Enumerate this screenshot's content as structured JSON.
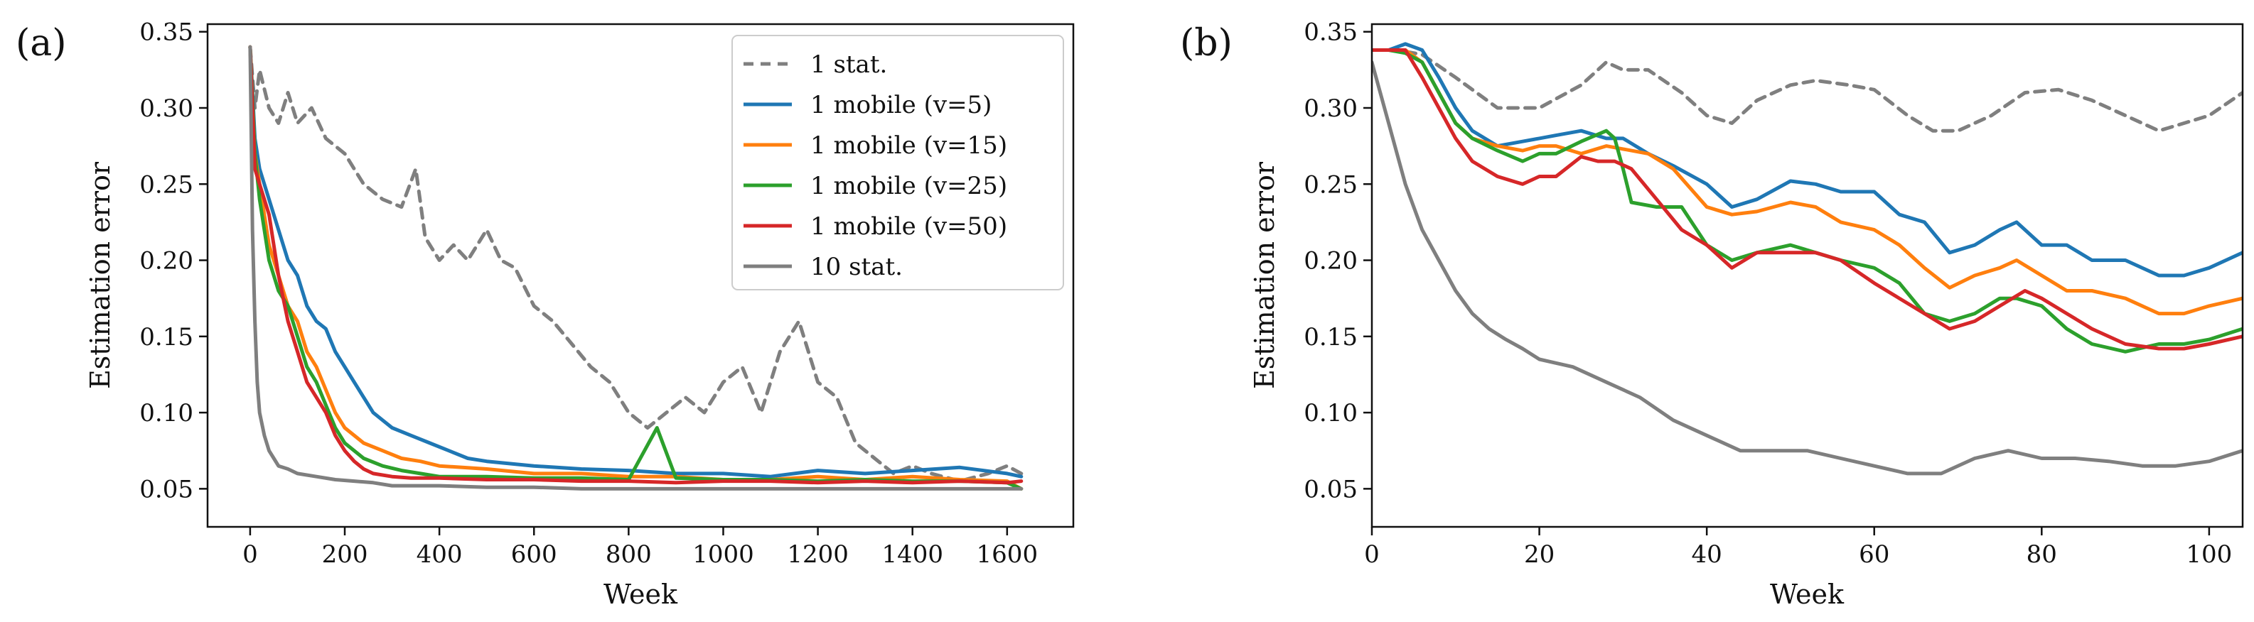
{
  "panels": [
    {
      "label": "(a)",
      "xlabel": "Week",
      "ylabel": "Estimation error",
      "xticks": [
        "0",
        "200",
        "400",
        "600",
        "800",
        "1000",
        "1200",
        "1400",
        "1600"
      ],
      "yticks": [
        "0.05",
        "0.10",
        "0.15",
        "0.20",
        "0.25",
        "0.30",
        "0.35"
      ]
    },
    {
      "label": "(b)",
      "xlabel": "Week",
      "ylabel": "Estimation error",
      "xticks": [
        "0",
        "20",
        "40",
        "60",
        "80",
        "100"
      ],
      "yticks": [
        "0.05",
        "0.10",
        "0.15",
        "0.20",
        "0.25",
        "0.30",
        "0.35"
      ]
    }
  ],
  "legend": [
    {
      "name": "1 stat.",
      "color": "#7f7f7f",
      "dash": true
    },
    {
      "name": "1 mobile (v=5)",
      "color": "#1f77b4",
      "dash": false
    },
    {
      "name": "1 mobile (v=15)",
      "color": "#ff7f0e",
      "dash": false
    },
    {
      "name": "1 mobile (v=25)",
      "color": "#2ca02c",
      "dash": false
    },
    {
      "name": "1 mobile (v=50)",
      "color": "#d62728",
      "dash": false
    },
    {
      "name": "10 stat.",
      "color": "#7f7f7f",
      "dash": false
    }
  ],
  "chart_data": [
    {
      "type": "line",
      "xlabel": "Week",
      "ylabel": "Estimation error",
      "xlim": [
        -90,
        1740
      ],
      "ylim": [
        0.025,
        0.355
      ],
      "grid": false,
      "legend_position": "top-right",
      "series": [
        {
          "name": "1 stat.",
          "color": "#7f7f7f",
          "dash": true,
          "x": [
            0,
            10,
            20,
            40,
            60,
            80,
            100,
            130,
            160,
            200,
            240,
            280,
            320,
            350,
            370,
            400,
            430,
            460,
            500,
            530,
            560,
            600,
            640,
            680,
            720,
            760,
            800,
            840,
            880,
            920,
            960,
            1000,
            1040,
            1080,
            1120,
            1160,
            1180,
            1200,
            1240,
            1280,
            1320,
            1360,
            1400,
            1440,
            1500,
            1560,
            1600,
            1630
          ],
          "y": [
            0.34,
            0.3,
            0.325,
            0.3,
            0.29,
            0.31,
            0.29,
            0.3,
            0.28,
            0.27,
            0.25,
            0.24,
            0.235,
            0.26,
            0.215,
            0.2,
            0.21,
            0.2,
            0.22,
            0.2,
            0.195,
            0.17,
            0.16,
            0.145,
            0.13,
            0.12,
            0.1,
            0.09,
            0.1,
            0.11,
            0.1,
            0.12,
            0.13,
            0.1,
            0.14,
            0.16,
            0.14,
            0.12,
            0.11,
            0.08,
            0.07,
            0.06,
            0.065,
            0.06,
            0.055,
            0.06,
            0.065,
            0.06
          ]
        },
        {
          "name": "1 mobile (v=5)",
          "color": "#1f77b4",
          "dash": false,
          "x": [
            0,
            10,
            20,
            40,
            60,
            80,
            100,
            120,
            140,
            160,
            180,
            200,
            220,
            240,
            260,
            280,
            300,
            340,
            380,
            420,
            460,
            500,
            600,
            700,
            800,
            900,
            1000,
            1100,
            1200,
            1300,
            1400,
            1500,
            1600,
            1630
          ],
          "y": [
            0.34,
            0.28,
            0.26,
            0.24,
            0.22,
            0.2,
            0.19,
            0.17,
            0.16,
            0.155,
            0.14,
            0.13,
            0.12,
            0.11,
            0.1,
            0.095,
            0.09,
            0.085,
            0.08,
            0.075,
            0.07,
            0.068,
            0.065,
            0.063,
            0.062,
            0.06,
            0.06,
            0.058,
            0.062,
            0.06,
            0.062,
            0.064,
            0.06,
            0.058
          ]
        },
        {
          "name": "1 mobile (v=15)",
          "color": "#ff7f0e",
          "dash": false,
          "x": [
            0,
            10,
            20,
            40,
            60,
            80,
            100,
            120,
            140,
            160,
            180,
            200,
            240,
            280,
            320,
            360,
            400,
            500,
            600,
            700,
            800,
            900,
            1000,
            1100,
            1200,
            1300,
            1400,
            1500,
            1600,
            1630
          ],
          "y": [
            0.34,
            0.27,
            0.25,
            0.21,
            0.19,
            0.17,
            0.16,
            0.14,
            0.13,
            0.115,
            0.1,
            0.09,
            0.08,
            0.075,
            0.07,
            0.068,
            0.065,
            0.063,
            0.06,
            0.06,
            0.058,
            0.058,
            0.056,
            0.056,
            0.058,
            0.056,
            0.058,
            0.056,
            0.055,
            0.05
          ]
        },
        {
          "name": "1 mobile (v=25)",
          "color": "#2ca02c",
          "dash": false,
          "x": [
            0,
            10,
            20,
            40,
            60,
            80,
            100,
            120,
            140,
            160,
            180,
            200,
            240,
            280,
            320,
            360,
            400,
            500,
            600,
            700,
            800,
            860,
            900,
            1000,
            1100,
            1200,
            1300,
            1400,
            1500,
            1600,
            1630
          ],
          "y": [
            0.34,
            0.27,
            0.24,
            0.2,
            0.18,
            0.17,
            0.15,
            0.13,
            0.12,
            0.105,
            0.09,
            0.08,
            0.07,
            0.065,
            0.062,
            0.06,
            0.058,
            0.058,
            0.057,
            0.057,
            0.056,
            0.09,
            0.057,
            0.056,
            0.056,
            0.055,
            0.056,
            0.055,
            0.055,
            0.054,
            0.05
          ]
        },
        {
          "name": "1 mobile (v=50)",
          "color": "#d62728",
          "dash": false,
          "x": [
            0,
            10,
            20,
            40,
            60,
            80,
            100,
            120,
            140,
            160,
            180,
            200,
            220,
            240,
            260,
            300,
            340,
            400,
            500,
            600,
            700,
            800,
            900,
            1000,
            1100,
            1200,
            1300,
            1400,
            1500,
            1600,
            1630
          ],
          "y": [
            0.34,
            0.26,
            0.25,
            0.23,
            0.19,
            0.16,
            0.14,
            0.12,
            0.11,
            0.1,
            0.085,
            0.075,
            0.068,
            0.063,
            0.06,
            0.058,
            0.057,
            0.057,
            0.056,
            0.056,
            0.055,
            0.055,
            0.054,
            0.055,
            0.055,
            0.054,
            0.055,
            0.054,
            0.055,
            0.054,
            0.055
          ]
        },
        {
          "name": "10 stat.",
          "color": "#7f7f7f",
          "dash": false,
          "x": [
            0,
            5,
            10,
            15,
            20,
            30,
            40,
            50,
            60,
            80,
            100,
            140,
            180,
            220,
            260,
            300,
            400,
            500,
            600,
            700,
            800,
            900,
            1000,
            1100,
            1200,
            1300,
            1400,
            1500,
            1600,
            1630
          ],
          "y": [
            0.34,
            0.22,
            0.16,
            0.12,
            0.1,
            0.085,
            0.075,
            0.07,
            0.065,
            0.063,
            0.06,
            0.058,
            0.056,
            0.055,
            0.054,
            0.052,
            0.052,
            0.051,
            0.051,
            0.05,
            0.05,
            0.05,
            0.05,
            0.05,
            0.05,
            0.05,
            0.05,
            0.05,
            0.05,
            0.05
          ]
        }
      ]
    },
    {
      "type": "line",
      "xlabel": "Week",
      "ylabel": "Estimation error",
      "xlim": [
        0,
        104
      ],
      "ylim": [
        0.025,
        0.355
      ],
      "grid": false,
      "series": [
        {
          "name": "1 stat.",
          "color": "#7f7f7f",
          "dash": true,
          "x": [
            0,
            3,
            6,
            10,
            15,
            20,
            25,
            28,
            30,
            33,
            37,
            40,
            43,
            46,
            50,
            53,
            57,
            60,
            64,
            67,
            70,
            74,
            78,
            82,
            86,
            90,
            94,
            97,
            100,
            104
          ],
          "y": [
            0.338,
            0.338,
            0.335,
            0.32,
            0.3,
            0.3,
            0.315,
            0.33,
            0.325,
            0.325,
            0.31,
            0.295,
            0.29,
            0.305,
            0.315,
            0.318,
            0.315,
            0.312,
            0.295,
            0.285,
            0.285,
            0.295,
            0.31,
            0.312,
            0.305,
            0.295,
            0.285,
            0.29,
            0.295,
            0.31
          ]
        },
        {
          "name": "1 mobile (v=5)",
          "color": "#1f77b4",
          "dash": false,
          "x": [
            0,
            2,
            4,
            6,
            8,
            10,
            12,
            15,
            18,
            20,
            22,
            25,
            28,
            30,
            33,
            36,
            40,
            43,
            46,
            50,
            53,
            56,
            60,
            63,
            66,
            69,
            72,
            75,
            77,
            80,
            83,
            86,
            90,
            94,
            97,
            100,
            104
          ],
          "y": [
            0.338,
            0.338,
            0.342,
            0.338,
            0.32,
            0.3,
            0.285,
            0.275,
            0.278,
            0.28,
            0.282,
            0.285,
            0.28,
            0.28,
            0.27,
            0.262,
            0.25,
            0.235,
            0.24,
            0.252,
            0.25,
            0.245,
            0.245,
            0.23,
            0.225,
            0.205,
            0.21,
            0.22,
            0.225,
            0.21,
            0.21,
            0.2,
            0.2,
            0.19,
            0.19,
            0.195,
            0.205
          ]
        },
        {
          "name": "1 mobile (v=15)",
          "color": "#ff7f0e",
          "dash": false,
          "x": [
            0,
            2,
            4,
            6,
            8,
            10,
            12,
            15,
            18,
            20,
            22,
            25,
            28,
            30,
            33,
            36,
            40,
            43,
            46,
            50,
            53,
            56,
            60,
            63,
            66,
            69,
            72,
            75,
            77,
            80,
            83,
            86,
            90,
            94,
            97,
            100,
            104
          ],
          "y": [
            0.338,
            0.338,
            0.338,
            0.33,
            0.31,
            0.29,
            0.28,
            0.275,
            0.272,
            0.275,
            0.275,
            0.27,
            0.275,
            0.273,
            0.27,
            0.26,
            0.235,
            0.23,
            0.232,
            0.238,
            0.235,
            0.225,
            0.22,
            0.21,
            0.195,
            0.182,
            0.19,
            0.195,
            0.2,
            0.19,
            0.18,
            0.18,
            0.175,
            0.165,
            0.165,
            0.17,
            0.175
          ]
        },
        {
          "name": "1 mobile (v=25)",
          "color": "#2ca02c",
          "dash": false,
          "x": [
            0,
            2,
            4,
            6,
            8,
            10,
            12,
            15,
            18,
            20,
            22,
            25,
            28,
            29,
            30,
            31,
            34,
            37,
            40,
            43,
            46,
            50,
            53,
            56,
            60,
            63,
            66,
            69,
            72,
            75,
            77,
            80,
            83,
            86,
            90,
            94,
            97,
            100,
            104
          ],
          "y": [
            0.338,
            0.338,
            0.336,
            0.33,
            0.31,
            0.29,
            0.28,
            0.272,
            0.265,
            0.27,
            0.27,
            0.278,
            0.285,
            0.28,
            0.26,
            0.238,
            0.235,
            0.235,
            0.21,
            0.2,
            0.205,
            0.21,
            0.205,
            0.2,
            0.195,
            0.185,
            0.165,
            0.16,
            0.165,
            0.175,
            0.175,
            0.17,
            0.155,
            0.145,
            0.14,
            0.145,
            0.145,
            0.148,
            0.155
          ]
        },
        {
          "name": "1 mobile (v=50)",
          "color": "#d62728",
          "dash": false,
          "x": [
            0,
            2,
            4,
            6,
            8,
            10,
            12,
            15,
            18,
            20,
            22,
            25,
            27,
            29,
            31,
            34,
            37,
            40,
            43,
            46,
            50,
            53,
            56,
            60,
            63,
            66,
            69,
            72,
            75,
            78,
            80,
            83,
            86,
            90,
            94,
            97,
            100,
            104
          ],
          "y": [
            0.338,
            0.338,
            0.338,
            0.32,
            0.3,
            0.28,
            0.265,
            0.255,
            0.25,
            0.255,
            0.255,
            0.268,
            0.265,
            0.265,
            0.26,
            0.24,
            0.22,
            0.21,
            0.195,
            0.205,
            0.205,
            0.205,
            0.2,
            0.185,
            0.175,
            0.165,
            0.155,
            0.16,
            0.17,
            0.18,
            0.175,
            0.165,
            0.155,
            0.145,
            0.142,
            0.142,
            0.145,
            0.15
          ]
        },
        {
          "name": "10 stat.",
          "color": "#7f7f7f",
          "dash": false,
          "x": [
            0,
            2,
            4,
            6,
            8,
            10,
            12,
            14,
            16,
            18,
            20,
            24,
            28,
            32,
            36,
            40,
            44,
            48,
            52,
            56,
            60,
            64,
            68,
            72,
            76,
            80,
            84,
            88,
            92,
            96,
            100,
            104
          ],
          "y": [
            0.33,
            0.29,
            0.25,
            0.22,
            0.2,
            0.18,
            0.165,
            0.155,
            0.148,
            0.142,
            0.135,
            0.13,
            0.12,
            0.11,
            0.095,
            0.085,
            0.075,
            0.075,
            0.075,
            0.07,
            0.065,
            0.06,
            0.06,
            0.07,
            0.075,
            0.07,
            0.07,
            0.068,
            0.065,
            0.065,
            0.068,
            0.075
          ]
        }
      ]
    }
  ]
}
